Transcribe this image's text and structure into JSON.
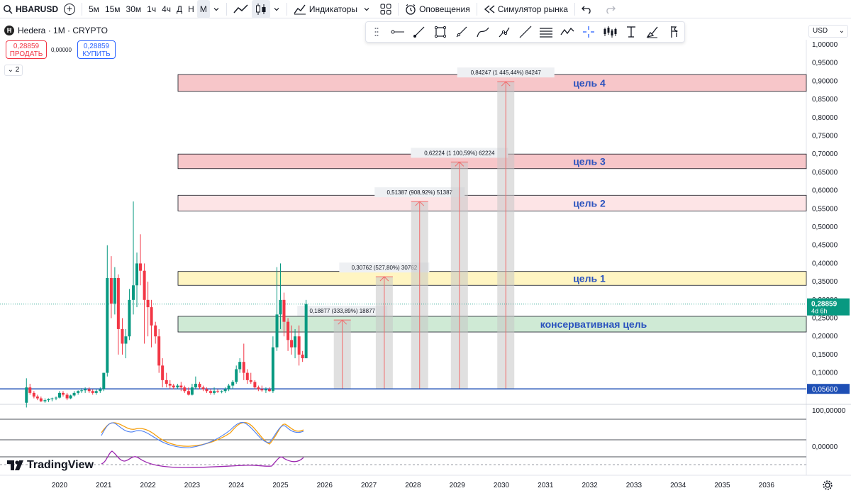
{
  "toolbar": {
    "symbol": "HBARUSD",
    "timeframes": [
      "5м",
      "15м",
      "30м",
      "1ч",
      "4ч",
      "Д",
      "Н",
      "М"
    ],
    "active_timeframe": "М",
    "indicators_label": "Индикаторы",
    "alerts_label": "Оповещения",
    "replay_label": "Симулятор рынка"
  },
  "legend": {
    "title": "Hedera · 1M · CRYPTO",
    "sell_price": "0,28859",
    "sell_label": "ПРОДАТЬ",
    "spread": "0,00000",
    "buy_price": "0,28859",
    "buy_label": "КУПИТЬ",
    "collapsed_count": "2"
  },
  "currency": "USD",
  "brand": "TradingView",
  "colors": {
    "up": "#089981",
    "down": "#f23645",
    "target_red_fill": "#f7c6c9",
    "target_pink_fill": "#fde4e6",
    "target_yellow_fill": "#fff5c2",
    "target_green_fill": "#cfead5",
    "label_blue": "#2a52be",
    "support_line": "#1e4fb5"
  },
  "chart_data": {
    "type": "candlestick",
    "y_axis_ticks": [
      "1,00000",
      "0,95000",
      "0,90000",
      "0,85000",
      "0,80000",
      "0,75000",
      "0,70000",
      "0,65000",
      "0,60000",
      "0,55000",
      "0,50000",
      "0,45000",
      "0,40000",
      "0,35000",
      "0,30000",
      "0,25000",
      "0,20000",
      "0,15000",
      "0,10000"
    ],
    "x_axis_ticks": [
      "2020",
      "2021",
      "2022",
      "2023",
      "2024",
      "2025",
      "2026",
      "2027",
      "2028",
      "2029",
      "2030",
      "2031",
      "2032",
      "2033",
      "2034",
      "2035",
      "2036"
    ],
    "current_price": "0,28859",
    "current_countdown": "4d 6h",
    "support_price": "0,05600",
    "target_zones": [
      {
        "label": "цель 4",
        "low": 0.872,
        "high": 0.918,
        "style": "red"
      },
      {
        "label": "цель 3",
        "low": 0.66,
        "high": 0.7,
        "style": "red"
      },
      {
        "label": "цель 2",
        "low": 0.544,
        "high": 0.587,
        "style": "pink"
      },
      {
        "label": "цель 1",
        "low": 0.34,
        "high": 0.378,
        "style": "yellow"
      },
      {
        "label": "консервативная цель",
        "low": 0.212,
        "high": 0.255,
        "style": "green"
      }
    ],
    "projections": [
      {
        "year": 2026.4,
        "to": 0.2448,
        "label": "0,18877 (333,89%) 18877"
      },
      {
        "year": 2027.35,
        "to": 0.3636,
        "label": "0,30762 (527,80%) 30762"
      },
      {
        "year": 2028.15,
        "to": 0.5699,
        "label": "0,51387 (908,92%) 51387"
      },
      {
        "year": 2029.05,
        "to": 0.6782,
        "label": "0,62224 (1 100,59%) 62224"
      },
      {
        "year": 2030.1,
        "to": 0.8985,
        "label": "0,84247 (1 445,44%) 84247"
      }
    ],
    "candles": [
      [
        2019.25,
        0.018,
        0.085,
        0.005,
        0.06
      ],
      [
        2019.33,
        0.06,
        0.07,
        0.04,
        0.045
      ],
      [
        2019.42,
        0.045,
        0.05,
        0.03,
        0.035
      ],
      [
        2019.5,
        0.035,
        0.04,
        0.025,
        0.03
      ],
      [
        2019.58,
        0.03,
        0.035,
        0.02,
        0.022
      ],
      [
        2019.67,
        0.022,
        0.03,
        0.018,
        0.025
      ],
      [
        2019.75,
        0.025,
        0.03,
        0.02,
        0.028
      ],
      [
        2019.83,
        0.028,
        0.032,
        0.022,
        0.03
      ],
      [
        2019.92,
        0.03,
        0.035,
        0.025,
        0.032
      ],
      [
        2020.0,
        0.032,
        0.05,
        0.03,
        0.045
      ],
      [
        2020.08,
        0.045,
        0.05,
        0.035,
        0.04
      ],
      [
        2020.17,
        0.04,
        0.045,
        0.025,
        0.03
      ],
      [
        2020.25,
        0.03,
        0.04,
        0.028,
        0.038
      ],
      [
        2020.33,
        0.038,
        0.05,
        0.035,
        0.045
      ],
      [
        2020.42,
        0.045,
        0.052,
        0.04,
        0.05
      ],
      [
        2020.5,
        0.05,
        0.058,
        0.045,
        0.052
      ],
      [
        2020.58,
        0.052,
        0.06,
        0.045,
        0.055
      ],
      [
        2020.67,
        0.055,
        0.06,
        0.045,
        0.05
      ],
      [
        2020.75,
        0.05,
        0.055,
        0.04,
        0.045
      ],
      [
        2020.83,
        0.045,
        0.055,
        0.04,
        0.05
      ],
      [
        2020.92,
        0.05,
        0.06,
        0.045,
        0.055
      ],
      [
        2021.0,
        0.055,
        0.1,
        0.05,
        0.1
      ],
      [
        2021.08,
        0.1,
        0.45,
        0.09,
        0.36
      ],
      [
        2021.17,
        0.36,
        0.42,
        0.25,
        0.29
      ],
      [
        2021.25,
        0.29,
        0.39,
        0.26,
        0.36
      ],
      [
        2021.33,
        0.36,
        0.37,
        0.15,
        0.22
      ],
      [
        2021.42,
        0.22,
        0.25,
        0.15,
        0.18
      ],
      [
        2021.5,
        0.18,
        0.22,
        0.14,
        0.2
      ],
      [
        2021.58,
        0.2,
        0.33,
        0.19,
        0.3
      ],
      [
        2021.67,
        0.3,
        0.57,
        0.26,
        0.34
      ],
      [
        2021.75,
        0.34,
        0.43,
        0.28,
        0.4
      ],
      [
        2021.83,
        0.4,
        0.48,
        0.34,
        0.38
      ],
      [
        2021.92,
        0.38,
        0.4,
        0.18,
        0.3
      ],
      [
        2022.0,
        0.3,
        0.35,
        0.2,
        0.28
      ],
      [
        2022.08,
        0.28,
        0.3,
        0.17,
        0.23
      ],
      [
        2022.17,
        0.23,
        0.24,
        0.18,
        0.2
      ],
      [
        2022.25,
        0.2,
        0.22,
        0.1,
        0.12
      ],
      [
        2022.33,
        0.12,
        0.14,
        0.06,
        0.08
      ],
      [
        2022.42,
        0.08,
        0.1,
        0.06,
        0.07
      ],
      [
        2022.5,
        0.07,
        0.08,
        0.055,
        0.065
      ],
      [
        2022.58,
        0.065,
        0.07,
        0.055,
        0.06
      ],
      [
        2022.67,
        0.06,
        0.07,
        0.055,
        0.065
      ],
      [
        2022.75,
        0.065,
        0.075,
        0.05,
        0.06
      ],
      [
        2022.83,
        0.06,
        0.065,
        0.045,
        0.05
      ],
      [
        2022.92,
        0.05,
        0.06,
        0.038,
        0.04
      ],
      [
        2023.0,
        0.04,
        0.07,
        0.038,
        0.06
      ],
      [
        2023.08,
        0.06,
        0.09,
        0.055,
        0.07
      ],
      [
        2023.17,
        0.07,
        0.075,
        0.055,
        0.06
      ],
      [
        2023.25,
        0.06,
        0.065,
        0.05,
        0.055
      ],
      [
        2023.33,
        0.055,
        0.06,
        0.045,
        0.05
      ],
      [
        2023.42,
        0.05,
        0.055,
        0.04,
        0.045
      ],
      [
        2023.5,
        0.045,
        0.06,
        0.04,
        0.05
      ],
      [
        2023.58,
        0.05,
        0.055,
        0.045,
        0.048
      ],
      [
        2023.67,
        0.048,
        0.052,
        0.044,
        0.05
      ],
      [
        2023.75,
        0.05,
        0.06,
        0.045,
        0.055
      ],
      [
        2023.83,
        0.055,
        0.07,
        0.05,
        0.065
      ],
      [
        2023.92,
        0.065,
        0.08,
        0.055,
        0.075
      ],
      [
        2024.0,
        0.075,
        0.12,
        0.07,
        0.11
      ],
      [
        2024.08,
        0.11,
        0.14,
        0.1,
        0.13
      ],
      [
        2024.17,
        0.13,
        0.18,
        0.08,
        0.1
      ],
      [
        2024.25,
        0.1,
        0.11,
        0.07,
        0.08
      ],
      [
        2024.33,
        0.08,
        0.1,
        0.07,
        0.075
      ],
      [
        2024.42,
        0.075,
        0.08,
        0.055,
        0.06
      ],
      [
        2024.5,
        0.06,
        0.065,
        0.05,
        0.055
      ],
      [
        2024.58,
        0.055,
        0.065,
        0.048,
        0.052
      ],
      [
        2024.67,
        0.052,
        0.06,
        0.045,
        0.055
      ],
      [
        2024.75,
        0.055,
        0.06,
        0.048,
        0.05
      ],
      [
        2024.83,
        0.05,
        0.2,
        0.045,
        0.17
      ],
      [
        2024.92,
        0.17,
        0.39,
        0.16,
        0.26
      ],
      [
        2025.0,
        0.26,
        0.4,
        0.22,
        0.3
      ],
      [
        2025.08,
        0.3,
        0.32,
        0.2,
        0.24
      ],
      [
        2025.17,
        0.24,
        0.25,
        0.16,
        0.19
      ],
      [
        2025.25,
        0.19,
        0.23,
        0.15,
        0.17
      ],
      [
        2025.33,
        0.17,
        0.22,
        0.14,
        0.2
      ],
      [
        2025.42,
        0.2,
        0.23,
        0.12,
        0.15
      ],
      [
        2025.5,
        0.15,
        0.16,
        0.13,
        0.14
      ],
      [
        2025.58,
        0.14,
        0.3,
        0.14,
        0.28859
      ]
    ]
  },
  "oscillator": {
    "tick_top": "100,00000",
    "tick_zero": "0,00000"
  }
}
